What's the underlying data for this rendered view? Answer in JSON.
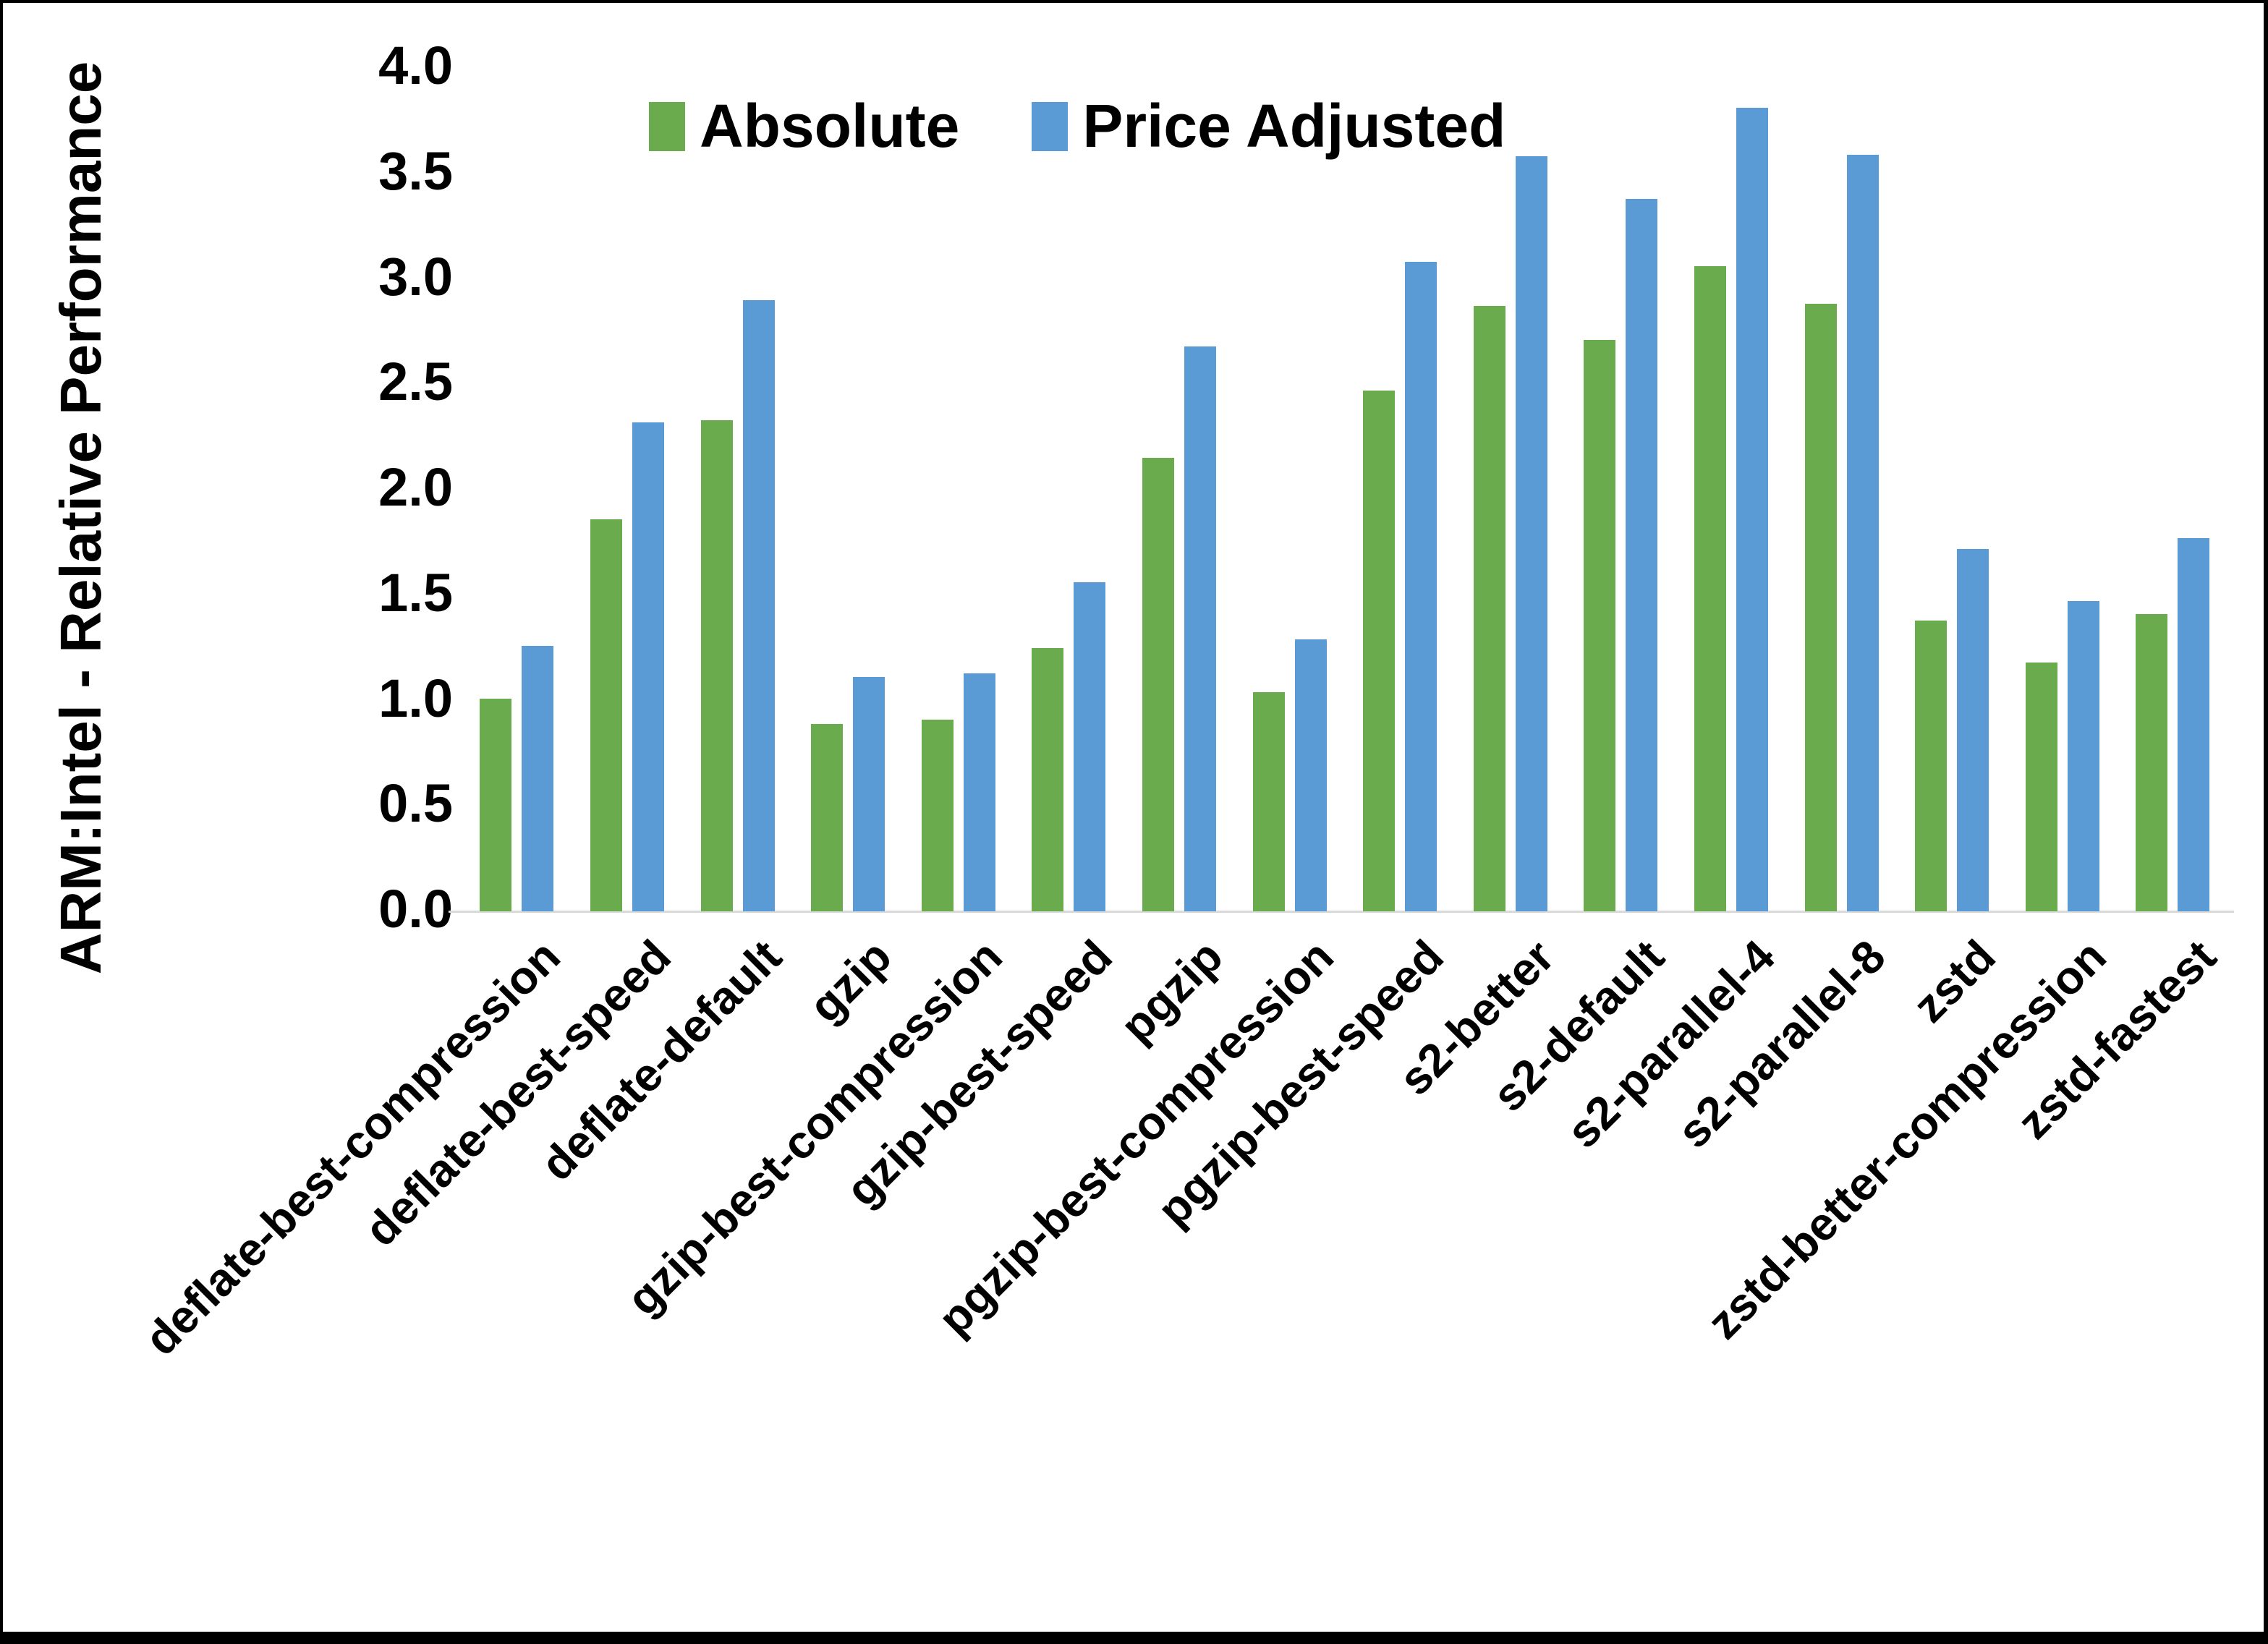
{
  "chart_data": {
    "type": "bar",
    "title": "",
    "xlabel": "",
    "ylabel": "ARM:Intel - Relative Performance",
    "ylim": [
      0.0,
      4.0
    ],
    "ytick_step": 0.5,
    "ytick_labels": [
      "0.0",
      "0.5",
      "1.0",
      "1.5",
      "2.0",
      "2.5",
      "3.0",
      "3.5",
      "4.0"
    ],
    "grid": false,
    "legend_position": "top-center",
    "background_color": "#FFFFFF",
    "axis_line_color": "#D9D9D9",
    "text_color": "#000000",
    "categories": [
      "deflate-best-compression",
      "deflate-best-speed",
      "deflate-default",
      "gzip",
      "gzip-best-compression",
      "gzip-best-speed",
      "pgzip",
      "pgzip-best-compression",
      "pgzip-best-speed",
      "s2-better",
      "s2-default",
      "s2-parallel-4",
      "s2-parallel-8",
      "zstd",
      "zstd-better-compression",
      "zstd-fastest"
    ],
    "series": [
      {
        "name": "Absolute",
        "color": "#6AAB4D",
        "values": [
          1.01,
          1.86,
          2.33,
          0.89,
          0.91,
          1.25,
          2.15,
          1.04,
          2.47,
          2.87,
          2.71,
          3.06,
          2.88,
          1.38,
          1.18,
          1.41
        ]
      },
      {
        "name": "Price Adjusted",
        "color": "#5B9BD5",
        "values": [
          1.26,
          2.32,
          2.9,
          1.11,
          1.13,
          1.56,
          2.68,
          1.29,
          3.08,
          3.58,
          3.38,
          3.81,
          3.59,
          1.72,
          1.47,
          1.77
        ]
      }
    ]
  },
  "frame": {
    "border_color": "#000000"
  }
}
